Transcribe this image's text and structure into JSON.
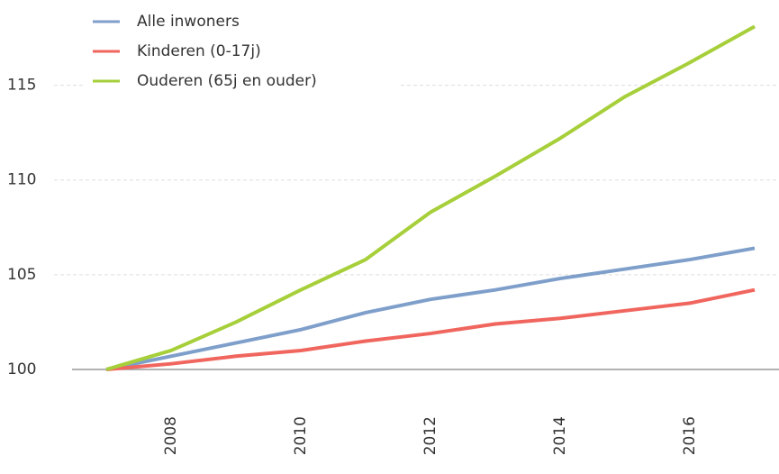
{
  "chart_data": {
    "type": "line",
    "x": [
      2007,
      2008,
      2009,
      2010,
      2011,
      2012,
      2013,
      2014,
      2015,
      2016,
      2017
    ],
    "series": [
      {
        "name": "Alle inwoners",
        "color": "#7f9fcb",
        "values": [
          100,
          100.7,
          101.4,
          102.1,
          103.0,
          103.7,
          104.2,
          104.8,
          105.3,
          105.8,
          106.4
        ]
      },
      {
        "name": "Kinderen (0-17j)",
        "color": "#f0665e",
        "values": [
          100,
          100.3,
          100.7,
          101.0,
          101.5,
          101.9,
          102.4,
          102.7,
          103.1,
          103.5,
          104.2
        ]
      },
      {
        "name": "Ouderen (65j en ouder)",
        "color": "#a6cf3a",
        "values": [
          100,
          101.0,
          102.5,
          104.2,
          105.8,
          108.3,
          110.2,
          112.2,
          114.4,
          116.2,
          118.1
        ]
      }
    ],
    "xlim": [
      2007,
      2017
    ],
    "xticks": [
      2008,
      2010,
      2012,
      2014,
      2016
    ],
    "ylim": [
      100,
      119.5
    ],
    "yticks": [
      100,
      105,
      110,
      115
    ],
    "grid": true,
    "legend": "top-left"
  }
}
